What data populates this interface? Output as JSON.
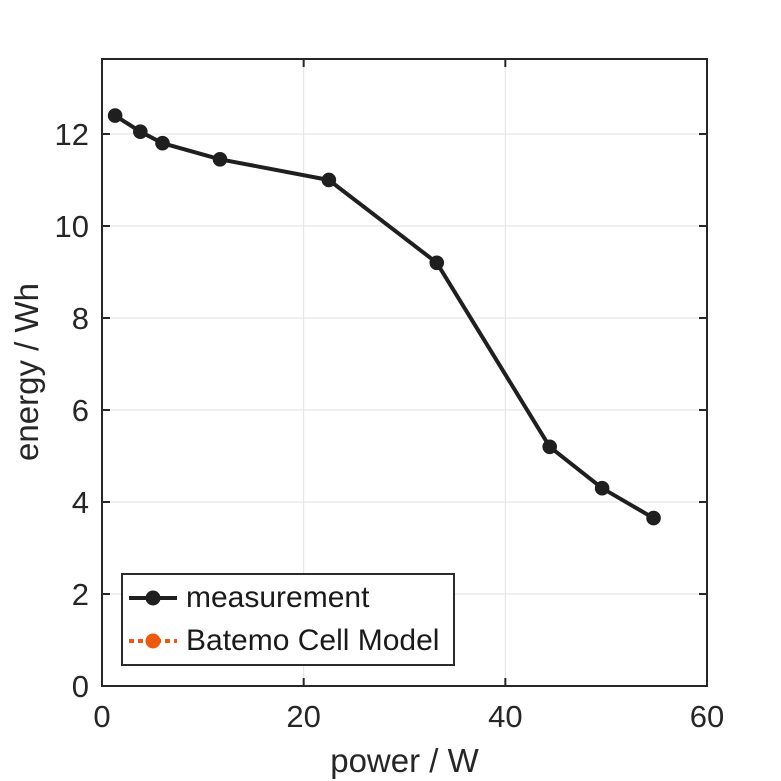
{
  "chart_data": {
    "type": "line",
    "title": "",
    "xlabel": "power / W",
    "ylabel": "energy / Wh",
    "xlim": [
      0,
      60
    ],
    "ylim": [
      0,
      13.63
    ],
    "xticks": [
      0,
      20,
      40,
      60
    ],
    "yticks": [
      0,
      2,
      4,
      6,
      8,
      10,
      12
    ],
    "grid": true,
    "grid_color": "#e2e2e2",
    "axis_color": "#262626",
    "legend_position": "inside-bottom-left",
    "series": [
      {
        "name": "measurement",
        "color": "#1f1f1f",
        "line_style": "solid",
        "marker": "circle",
        "points": [
          [
            1.3,
            12.4
          ],
          [
            3.8,
            12.05
          ],
          [
            6.0,
            11.8
          ],
          [
            11.7,
            11.45
          ],
          [
            22.5,
            11.0
          ],
          [
            33.2,
            9.2
          ],
          [
            44.4,
            5.2
          ],
          [
            49.6,
            4.3
          ],
          [
            54.7,
            3.65
          ]
        ]
      },
      {
        "name": "Batemo Cell Model",
        "color": "#eb5a0f",
        "line_style": "dotted",
        "marker": "circle",
        "points": [],
        "visible_in_plot": false
      }
    ]
  }
}
